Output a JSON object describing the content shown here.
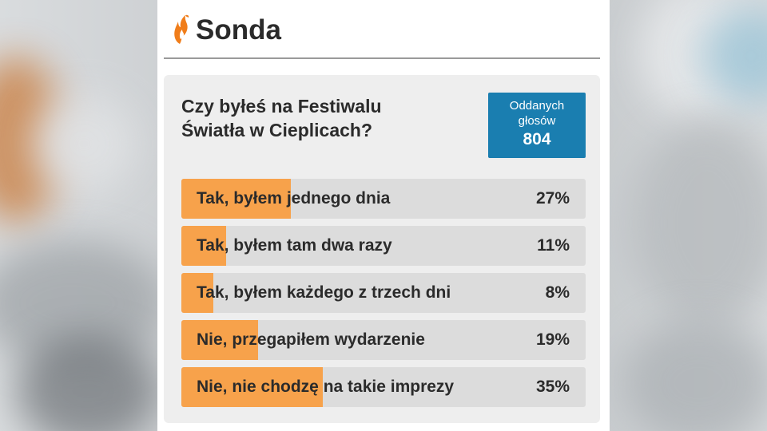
{
  "header": {
    "title": "Sonda",
    "logo_icon": "flame-hand-icon",
    "accent_color": "#f07d1a"
  },
  "poll": {
    "question": "Czy byłeś na Festiwalu Światła w Cieplicach?",
    "votes_label": "Oddanych głosów",
    "votes_count": "804",
    "badge_color": "#1a7eb0",
    "bar_color": "#f7a24b",
    "options": [
      {
        "label": "Tak, byłem jednego dnia",
        "percent_text": "27%",
        "percent": 27
      },
      {
        "label": "Tak, byłem tam dwa razy",
        "percent_text": "11%",
        "percent": 11
      },
      {
        "label": "Tak, byłem każdego z trzech dni",
        "percent_text": "8%",
        "percent": 8
      },
      {
        "label": "Nie, przegapiłem wydarzenie",
        "percent_text": "19%",
        "percent": 19
      },
      {
        "label": "Nie, nie chodzę na takie imprezy",
        "percent_text": "35%",
        "percent": 35
      }
    ]
  }
}
